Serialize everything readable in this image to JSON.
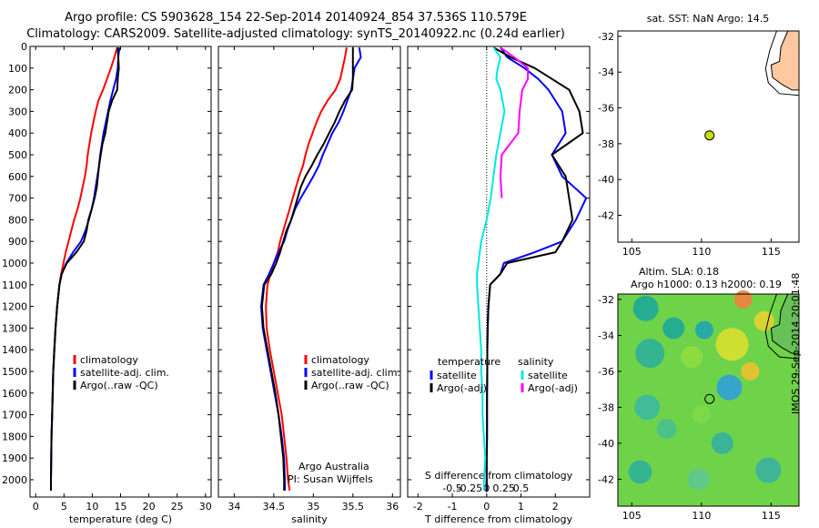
{
  "header": {
    "line1": "Argo profile: CS 5903628_154 22-Sep-2014 20140924_854 37.536S 110.579E",
    "line2": "Climatology: CARS2009. Satellite-adjusted climatology: synTS_20140922.nc (0.24d earlier)"
  },
  "chart_data": [
    {
      "type": "line",
      "panel": "temperature",
      "xlabel": "temperature (deg C)",
      "ylabel": "",
      "xlim": [
        -1,
        31
      ],
      "ylim": [
        2080,
        0
      ],
      "xticks": [
        0,
        5,
        10,
        15,
        20,
        25,
        30
      ],
      "yticks": [
        0,
        100,
        200,
        300,
        400,
        500,
        600,
        700,
        800,
        900,
        1000,
        1100,
        1200,
        1300,
        1400,
        1500,
        1600,
        1700,
        1800,
        1900,
        2000
      ],
      "legend": {
        "placement": "center-bottom",
        "entries": [
          "climatology",
          "satellite-adj. clim.",
          "Argo(..raw -QC)"
        ]
      },
      "series": [
        {
          "name": "climatology",
          "color": "#ff0000",
          "depth": [
            5,
            50,
            100,
            150,
            200,
            250,
            300,
            350,
            400,
            450,
            500,
            550,
            600,
            650,
            700,
            750,
            800,
            850,
            900,
            950,
            1000,
            1050,
            1100,
            1200,
            1300,
            1400,
            1500,
            1600,
            1700,
            1800,
            1900,
            2000,
            2050
          ],
          "values": [
            14.4,
            13.9,
            13.3,
            12.6,
            11.9,
            11.1,
            10.6,
            10.2,
            9.8,
            9.5,
            9.2,
            9.0,
            8.7,
            8.3,
            7.9,
            7.4,
            6.8,
            6.3,
            5.8,
            5.3,
            4.9,
            4.5,
            4.2,
            3.8,
            3.5,
            3.3,
            3.1,
            3.0,
            2.9,
            2.8,
            2.75,
            2.7,
            2.7
          ]
        },
        {
          "name": "satellite-adj. clim.",
          "color": "#0000ff",
          "depth": [
            5,
            50,
            100,
            150,
            200,
            250,
            300,
            350,
            400,
            450,
            500,
            550,
            600,
            650,
            700,
            750,
            800,
            850,
            900,
            950,
            1000,
            1050,
            1100,
            1200,
            1300,
            1400,
            1500,
            1600,
            1700,
            1800,
            1900,
            2000,
            2050
          ],
          "values": [
            14.8,
            14.6,
            14.5,
            14.2,
            13.7,
            13.2,
            12.8,
            12.4,
            12.0,
            11.7,
            11.4,
            11.2,
            10.9,
            10.6,
            10.3,
            9.9,
            9.4,
            8.8,
            8.0,
            6.6,
            5.4,
            4.6,
            4.2,
            3.8,
            3.5,
            3.3,
            3.1,
            3.0,
            2.9,
            2.8,
            2.75,
            2.7,
            2.7
          ]
        },
        {
          "name": "Argo(..raw -QC)",
          "color": "#000000",
          "depth": [
            5,
            50,
            100,
            150,
            200,
            250,
            300,
            350,
            400,
            450,
            500,
            550,
            600,
            650,
            700,
            750,
            800,
            850,
            900,
            950,
            1000,
            1050,
            1100,
            1200,
            1300,
            1400,
            1500,
            1600,
            1700,
            1800,
            1900,
            2000,
            2050
          ],
          "values": [
            14.5,
            14.6,
            14.7,
            14.5,
            14.4,
            13.5,
            12.9,
            12.6,
            12.3,
            11.8,
            11.5,
            11.2,
            11.0,
            10.8,
            10.4,
            9.9,
            9.3,
            9.0,
            8.5,
            7.2,
            5.5,
            4.6,
            4.2,
            3.8,
            3.5,
            3.3,
            3.1,
            3.0,
            2.9,
            2.8,
            2.75,
            2.7,
            2.7
          ]
        }
      ]
    },
    {
      "type": "line",
      "panel": "salinity",
      "xlabel": "salinity",
      "ylabel": "",
      "xlim": [
        33.8,
        36.1
      ],
      "ylim": [
        2080,
        0
      ],
      "xticks": [
        34,
        34.5,
        35,
        35.5,
        36
      ],
      "xticklabels": [
        "34",
        "34.5",
        "35",
        "35.5",
        "36"
      ],
      "legend": {
        "placement": "center-bottom",
        "entries": [
          "climatology",
          "satellite-adj. clim.",
          "Argo(..raw -QC)"
        ]
      },
      "annotation": [
        "Argo Australia",
        "PI: Susan Wijffels"
      ],
      "series": [
        {
          "name": "climatology",
          "color": "#ff0000",
          "depth": [
            5,
            50,
            100,
            150,
            200,
            250,
            300,
            350,
            400,
            450,
            500,
            550,
            600,
            650,
            700,
            750,
            800,
            850,
            900,
            950,
            1000,
            1050,
            1100,
            1200,
            1300,
            1400,
            1500,
            1600,
            1700,
            1800,
            1900,
            2000,
            2050
          ],
          "values": [
            35.42,
            35.4,
            35.37,
            35.34,
            35.28,
            35.18,
            35.1,
            35.04,
            34.99,
            34.94,
            34.9,
            34.87,
            34.82,
            34.78,
            34.74,
            34.7,
            34.66,
            34.62,
            34.58,
            34.55,
            34.5,
            34.46,
            34.42,
            34.4,
            34.41,
            34.45,
            34.5,
            34.55,
            34.6,
            34.63,
            34.66,
            34.68,
            34.7
          ]
        },
        {
          "name": "satellite-adj. clim.",
          "color": "#0000ff",
          "depth": [
            5,
            50,
            100,
            150,
            200,
            250,
            300,
            350,
            400,
            450,
            500,
            550,
            600,
            650,
            700,
            750,
            800,
            850,
            900,
            950,
            1000,
            1050,
            1100,
            1200,
            1300,
            1400,
            1500,
            1600,
            1700,
            1800,
            1900,
            2000,
            2050
          ],
          "values": [
            35.58,
            35.6,
            35.52,
            35.5,
            35.48,
            35.43,
            35.38,
            35.32,
            35.24,
            35.18,
            35.12,
            35.07,
            35.0,
            34.92,
            34.84,
            34.77,
            34.72,
            34.67,
            34.63,
            34.56,
            34.5,
            34.44,
            34.37,
            34.34,
            34.36,
            34.41,
            34.46,
            34.51,
            34.56,
            34.6,
            34.63,
            34.64,
            34.64
          ]
        },
        {
          "name": "Argo(..raw -QC)",
          "color": "#000000",
          "depth": [
            5,
            50,
            100,
            150,
            200,
            250,
            300,
            350,
            400,
            450,
            500,
            550,
            600,
            650,
            700,
            750,
            800,
            850,
            900,
            950,
            1000,
            1050,
            1100,
            1200,
            1300,
            1400,
            1500,
            1600,
            1700,
            1800,
            1900,
            2000,
            2050
          ],
          "values": [
            35.5,
            35.5,
            35.5,
            35.5,
            35.49,
            35.4,
            35.33,
            35.27,
            35.2,
            35.13,
            35.05,
            34.98,
            34.9,
            34.84,
            34.8,
            34.76,
            34.72,
            34.66,
            34.62,
            34.58,
            34.53,
            34.47,
            34.38,
            34.35,
            34.37,
            34.42,
            34.47,
            34.52,
            34.56,
            34.59,
            34.62,
            34.63,
            34.63
          ]
        }
      ]
    },
    {
      "type": "line",
      "panel": "difference",
      "xlabel": "T difference from climatology",
      "xlabel2": "S difference from climatology",
      "xlim": [
        -2.3,
        3.0
      ],
      "ylim": [
        2080,
        0
      ],
      "xticks": [
        -2,
        -1,
        0,
        1,
        2
      ],
      "sticks": [
        -0.5,
        -0.25,
        0,
        0.25,
        0.5
      ],
      "sticklabels": [
        "-0.5",
        "-0.25",
        "0",
        "0.25",
        "0.5"
      ],
      "legend": {
        "placement": "center-bottom",
        "temperature_title": "temperature",
        "salinity_title": "salinity",
        "entries": [
          "satellite",
          "Argo(-adj)",
          "satellite",
          "Argo(-adj)"
        ]
      },
      "series": [
        {
          "name": "satellite",
          "group": "temperature",
          "color": "#0000ff",
          "depth": [
            5,
            50,
            100,
            150,
            200,
            300,
            400,
            500,
            600,
            700,
            800,
            900,
            950,
            1000,
            1050,
            1100,
            1200,
            1300,
            1400,
            1500,
            1600,
            1700,
            1800,
            1900,
            2000,
            2050
          ],
          "values": [
            0.4,
            0.6,
            1.1,
            1.5,
            1.8,
            2.2,
            2.3,
            1.9,
            2.2,
            2.9,
            2.6,
            2.2,
            1.4,
            0.5,
            0.4,
            0.1,
            0.05,
            0.03,
            0.02,
            0.02,
            0.01,
            0.01,
            0.01,
            0.0,
            0.0,
            0.0
          ]
        },
        {
          "name": "Argo(-adj)",
          "group": "temperature",
          "color": "#000000",
          "depth": [
            5,
            50,
            100,
            150,
            200,
            300,
            400,
            500,
            600,
            700,
            800,
            900,
            950,
            1000,
            1050,
            1100,
            1200,
            1300,
            1400,
            1500,
            1600,
            1700,
            1800,
            1900,
            2000,
            2050
          ],
          "values": [
            0.2,
            0.7,
            1.4,
            1.9,
            2.4,
            2.7,
            2.8,
            1.9,
            2.3,
            2.4,
            2.5,
            2.2,
            2.0,
            0.6,
            0.4,
            0.1,
            0.05,
            0.03,
            0.02,
            0.02,
            0.01,
            0.01,
            0.01,
            0.0,
            0.0,
            0.0
          ]
        },
        {
          "name": "satellite",
          "group": "salinity",
          "color": "#00e5e5",
          "depth": [
            5,
            50,
            100,
            150,
            200,
            300,
            400,
            500,
            600,
            700,
            800,
            900,
            950,
            1000,
            1050,
            1100,
            1200,
            1300,
            1400,
            1500,
            1600,
            1700,
            1800,
            1900,
            2000,
            2050
          ],
          "values": [
            0.05,
            0.1,
            0.08,
            0.07,
            0.1,
            0.13,
            0.1,
            0.07,
            0.05,
            0.03,
            0.0,
            -0.04,
            -0.05,
            -0.06,
            -0.07,
            -0.07,
            -0.06,
            -0.05,
            -0.04,
            -0.04,
            -0.03,
            -0.03,
            -0.02,
            -0.01,
            -0.02,
            -0.02
          ]
        },
        {
          "name": "Argo(-adj)",
          "group": "salinity",
          "color": "#ff00ff",
          "depth": [
            5,
            50,
            100,
            150,
            200,
            300,
            400,
            500,
            600,
            700
          ],
          "values": [
            0.1,
            0.2,
            0.3,
            0.3,
            0.26,
            0.24,
            0.23,
            0.11,
            0.1,
            0.11
          ]
        }
      ]
    },
    {
      "type": "scatter",
      "panel": "sst-map",
      "title": "sat. SST: NaN Argo: 14.5",
      "xlim": [
        104,
        117
      ],
      "ylim": [
        -43.5,
        -31.7
      ],
      "xticks": [
        105,
        110,
        115
      ],
      "yticks": [
        -32,
        -34,
        -36,
        -38,
        -40,
        -42
      ],
      "points": [
        {
          "lon": 110.579,
          "lat": -37.536
        }
      ]
    },
    {
      "type": "heatmap",
      "panel": "sla-map",
      "title_line1": "Altim. SLA: 0.18",
      "title_line2": "Argo h1000: 0.13 h2000: 0.19",
      "side_label": "IMOS 29-Sep-2014 20:01:48",
      "xlim": [
        104,
        117
      ],
      "ylim": [
        -43.5,
        -31.7
      ],
      "xticks": [
        105,
        110,
        115
      ],
      "yticks": [
        -32,
        -34,
        -36,
        -38,
        -40,
        -42
      ],
      "points": [
        {
          "lon": 110.579,
          "lat": -37.536
        }
      ]
    }
  ],
  "colors": {
    "land": "#ffc8a0",
    "marker": "#c8e000",
    "sla_base": "#6fd34a"
  }
}
